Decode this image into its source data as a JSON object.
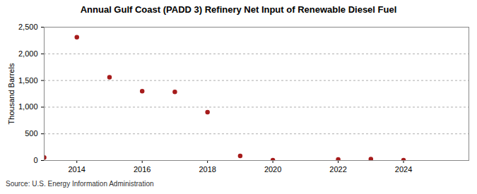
{
  "chart_data": {
    "type": "scatter",
    "title": "Annual Gulf Coast (PADD 3) Refinery Net Input of Renewable Diesel Fuel",
    "y_label": "Thousand Barrels",
    "source": "Source: U.S. Energy Information Administration",
    "x": [
      2013,
      2014,
      2015,
      2016,
      2017,
      2018,
      2019,
      2020,
      2022,
      2023,
      2024
    ],
    "values": [
      55,
      2310,
      1560,
      1300,
      1285,
      905,
      85,
      5,
      20,
      25,
      5
    ],
    "color": "#a61c1c",
    "marker": "circle",
    "xlim": [
      2013,
      2026
    ],
    "xticks": [
      2014,
      2016,
      2018,
      2020,
      2022,
      2024
    ],
    "ylim": [
      0,
      2500
    ],
    "yticks": [
      0,
      500,
      {
        "value": 1000,
        "label": "1,000"
      },
      {
        "value": 1500,
        "label": "1,500"
      },
      {
        "value": 2000,
        "label": "2,000"
      },
      {
        "value": 2500,
        "label": "2,500"
      }
    ],
    "grid": true
  }
}
